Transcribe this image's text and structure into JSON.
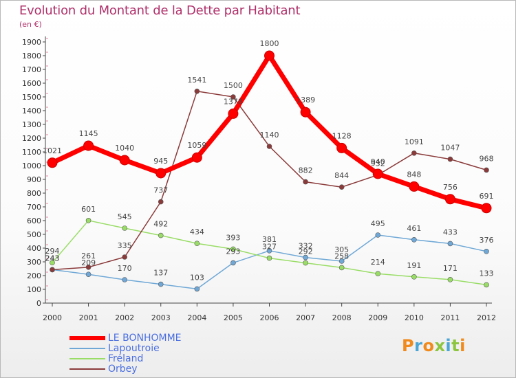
{
  "title": "Evolution du Montant de la Dette par Habitant",
  "subtitle": "(en €)",
  "logo": {
    "text": "Proxiti",
    "colors": [
      "#f08a1c",
      "#4aa6d6",
      "#f08a1c",
      "#8cc63e",
      "#4aa6d6",
      "#8cc63e",
      "#f08a1c"
    ]
  },
  "chart_data": {
    "type": "line",
    "x": [
      "2000",
      "2001",
      "2002",
      "2003",
      "2004",
      "2005",
      "2006",
      "2007",
      "2008",
      "2009",
      "2010",
      "2011",
      "2012"
    ],
    "ylim": [
      0,
      1900
    ],
    "yticks": [
      0,
      100,
      200,
      300,
      400,
      500,
      600,
      700,
      800,
      900,
      1000,
      1100,
      1200,
      1300,
      1400,
      1500,
      1600,
      1700,
      1800,
      1900
    ],
    "grid": false,
    "legend_placement": "bottom-left",
    "series": [
      {
        "name": "LE BONHOMME",
        "color": "#ff0000",
        "values": [
          1021,
          1145,
          1040,
          945,
          1059,
          1378,
          1800,
          1389,
          1128,
          940,
          848,
          756,
          691
        ]
      },
      {
        "name": "Lapoutroie",
        "color": "#6fa8d6",
        "values": [
          243,
          209,
          170,
          137,
          103,
          293,
          381,
          332,
          305,
          495,
          461,
          433,
          376
        ]
      },
      {
        "name": "Fréland",
        "color": "#99dd66",
        "values": [
          294,
          601,
          545,
          492,
          434,
          393,
          327,
          292,
          258,
          214,
          191,
          171,
          133
        ]
      },
      {
        "name": "Orbey",
        "color": "#8b3a3a",
        "values": [
          243,
          261,
          335,
          737,
          1541,
          1500,
          1140,
          882,
          844,
          932,
          1091,
          1047,
          968
        ]
      }
    ]
  }
}
